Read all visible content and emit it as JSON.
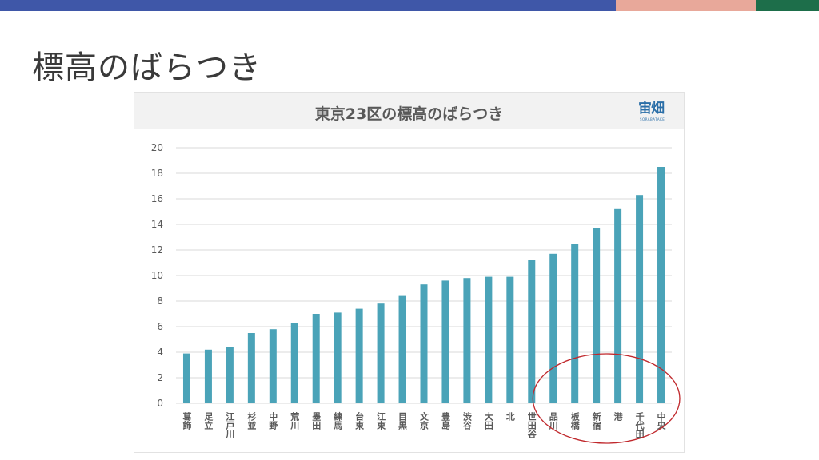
{
  "slide": {
    "title": "標高のばらつき",
    "colors": {
      "bar_blue": "#3f57a8",
      "bar_pink": "#e8a89a",
      "bar_green": "#1d6e4a"
    }
  },
  "logo": {
    "text": "宙畑",
    "sub": "SORABATAKE"
  },
  "chart_data": {
    "type": "bar",
    "title": "東京23区の標高のばらつき",
    "xlabel": "",
    "ylabel": "",
    "ylim": [
      0,
      20
    ],
    "yticks": [
      0,
      2,
      4,
      6,
      8,
      10,
      12,
      14,
      16,
      18,
      20
    ],
    "grid": true,
    "bar_color": "#4aa3b8",
    "categories": [
      "葛飾",
      "足立",
      "江戸川",
      "杉並",
      "中野",
      "荒川",
      "墨田",
      "練馬",
      "台東",
      "江東",
      "目黒",
      "文京",
      "豊島",
      "渋谷",
      "大田",
      "北",
      "世田谷",
      "品川",
      "板橋",
      "新宿",
      "港",
      "千代田",
      "中央"
    ],
    "values": [
      3.9,
      4.2,
      4.4,
      5.5,
      5.8,
      6.3,
      7.0,
      7.1,
      7.4,
      7.8,
      8.4,
      9.3,
      9.6,
      9.8,
      9.9,
      9.9,
      11.2,
      11.7,
      12.5,
      13.7,
      15.2,
      16.3,
      18.5
    ],
    "annotation": {
      "shape": "ellipse",
      "color": "#c0282c",
      "highlights": [
        "品川",
        "板橋",
        "新宿",
        "港",
        "千代田",
        "中央"
      ]
    }
  }
}
